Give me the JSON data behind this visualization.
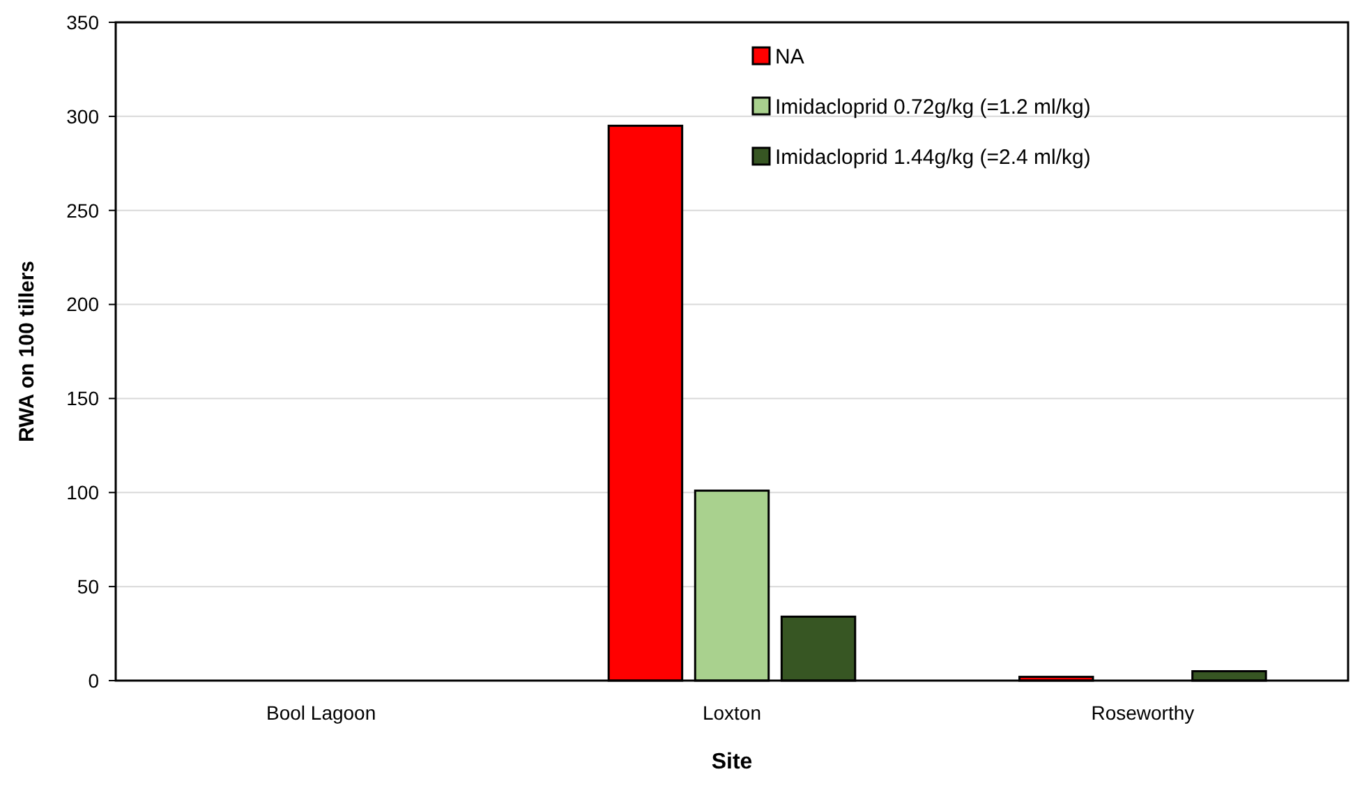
{
  "chart_data": {
    "type": "bar",
    "xlabel": "Site",
    "ylabel": "RWA on 100 tillers",
    "categories": [
      "Bool Lagoon",
      "Loxton",
      "Roseworthy"
    ],
    "series": [
      {
        "name": "NA",
        "color": "#ff0000",
        "values": [
          0,
          295,
          2
        ]
      },
      {
        "name": "Imidacloprid 0.72g/kg (=1.2 ml/kg)",
        "color": "#a9d18e",
        "values": [
          0,
          101,
          0
        ]
      },
      {
        "name": "Imidacloprid 1.44g/kg (=2.4 ml/kg)",
        "color": "#375623",
        "values": [
          0,
          34,
          5
        ]
      }
    ],
    "ylim": [
      0,
      350
    ],
    "yticks": [
      0,
      50,
      100,
      150,
      200,
      250,
      300,
      350
    ],
    "grid": "y",
    "legend": "top right"
  }
}
